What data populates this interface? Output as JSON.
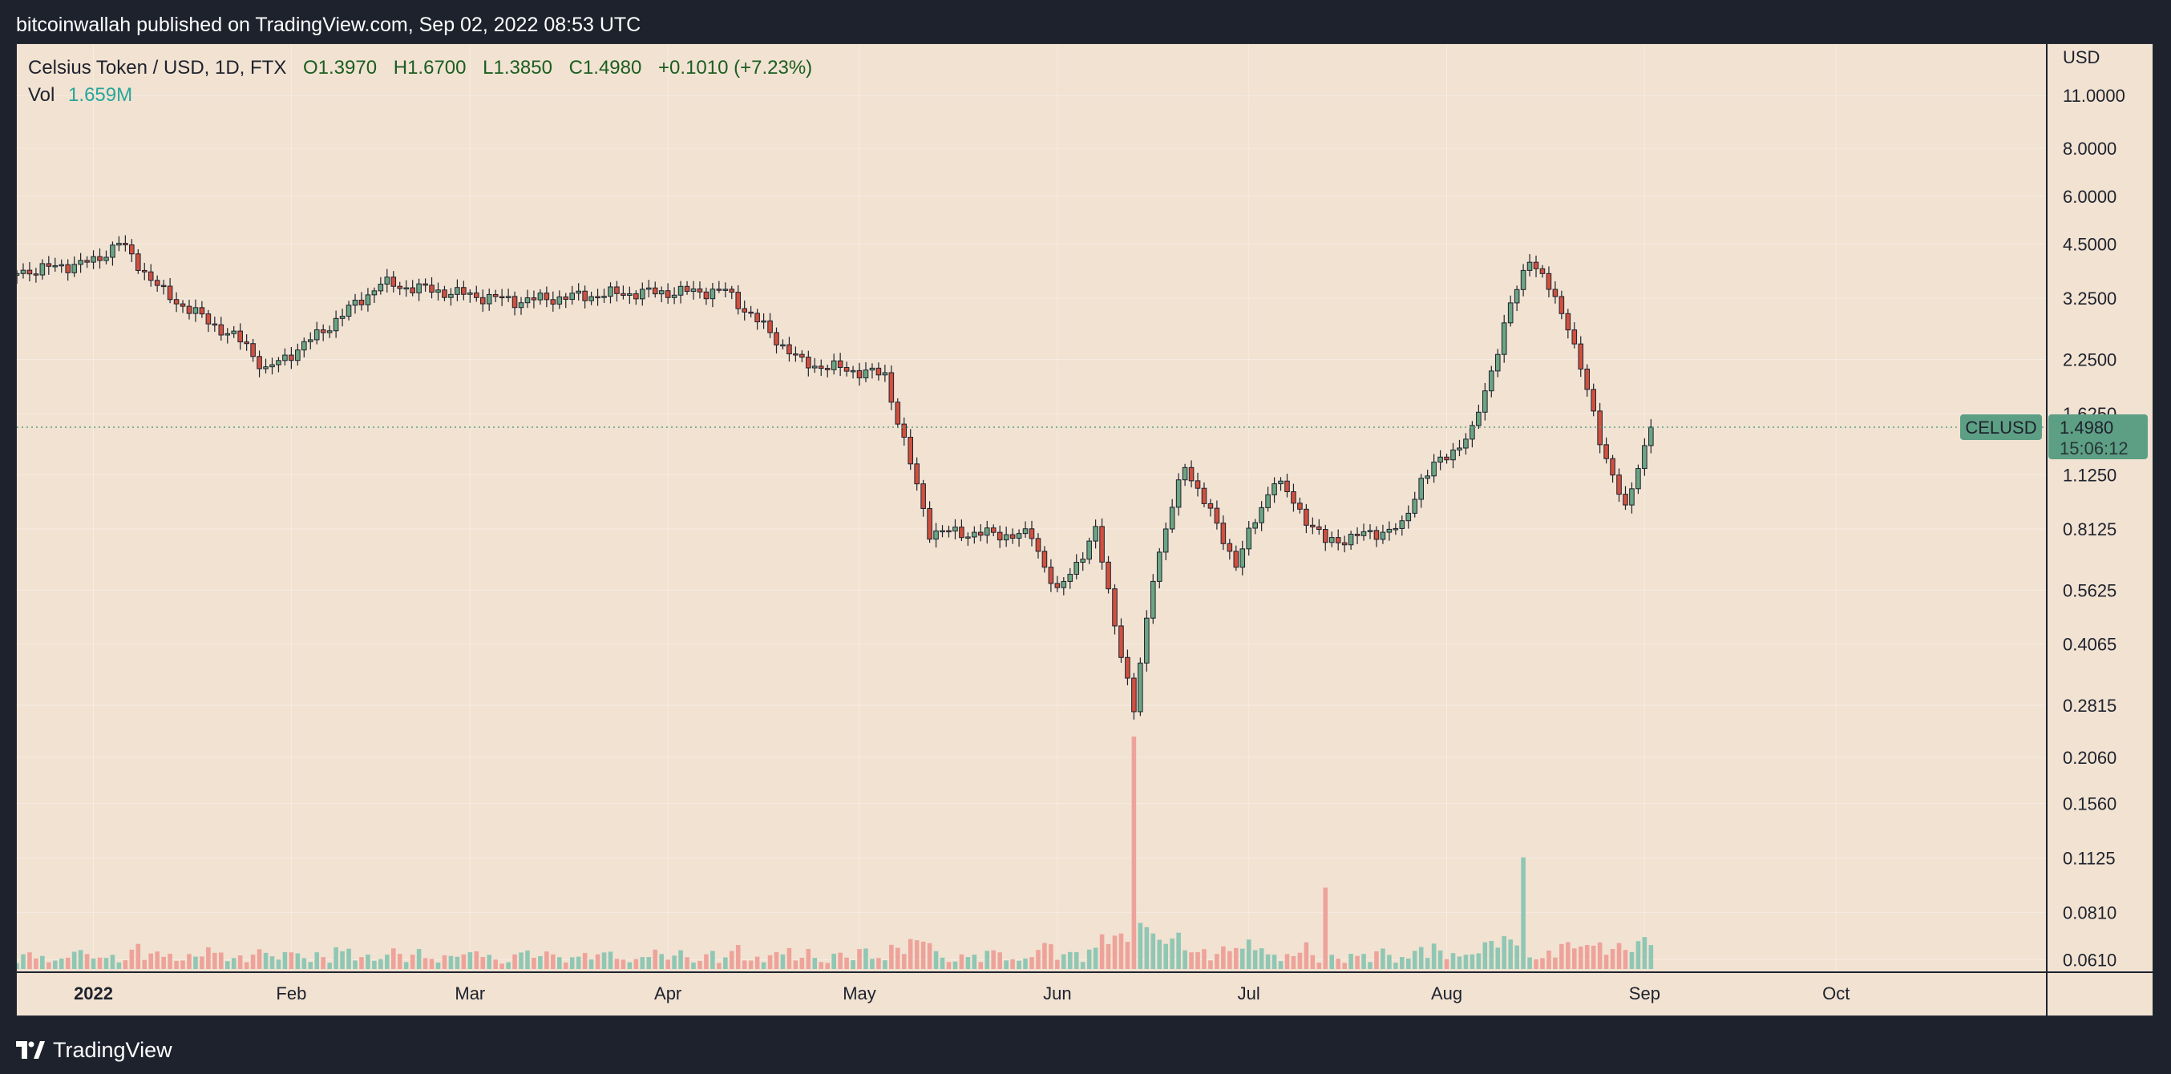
{
  "header": {
    "publisher": "bitcoinwallah published on TradingView.com, Sep 02, 2022 08:53 UTC"
  },
  "legend": {
    "symbol": "Celsius Token / USD, 1D, FTX",
    "open": "O1.3970",
    "high": "H1.6700",
    "low": "L1.3850",
    "close": "C1.4980",
    "change": "+0.1010 (+7.23%)",
    "vol_label": "Vol",
    "vol_value": "1.659M"
  },
  "price_axis": {
    "unit": "USD",
    "scale": "log",
    "ticks": [
      "11.0000",
      "8.0000",
      "6.0000",
      "4.5000",
      "3.2500",
      "2.2500",
      "1.6250",
      "1.1250",
      "0.8125",
      "0.5625",
      "0.4065",
      "0.2815",
      "0.2060",
      "0.1560",
      "0.1125",
      "0.0810",
      "0.0610"
    ]
  },
  "time_axis": {
    "labels": [
      "2022",
      "Feb",
      "Mar",
      "Apr",
      "May",
      "Jun",
      "Jul",
      "Aug",
      "Sep",
      "Oct"
    ]
  },
  "price_tag": {
    "symbol": "CELUSD",
    "price": "1.4980",
    "countdown": "15:06:12"
  },
  "colors": {
    "up": "#6ba583",
    "down": "#d0503f",
    "vol_up": "#8fc7b4",
    "vol_down": "#eea39a",
    "tag": "#5d9f84",
    "background": "#f1e2d2",
    "frame": "#1e222d"
  },
  "footer": {
    "brand": "TradingView"
  },
  "chart_data": {
    "type": "candlestick",
    "interval": "1D",
    "y_scale": "log",
    "ylim": [
      0.055,
      14
    ],
    "last_price": 1.498,
    "series": [
      {
        "name": "price",
        "values": [
          {
            "date": "2021-12-20",
            "c": 3.8
          },
          {
            "date": "2022-01-01",
            "c": 4.05
          },
          {
            "date": "2022-01-05",
            "c": 4.55
          },
          {
            "date": "2022-01-12",
            "c": 3.35
          },
          {
            "date": "2022-01-25",
            "c": 2.45
          },
          {
            "date": "2022-01-28",
            "c": 2.1
          },
          {
            "date": "2022-02-05",
            "c": 2.6
          },
          {
            "date": "2022-02-15",
            "c": 3.55
          },
          {
            "date": "2022-03-08",
            "c": 3.2
          },
          {
            "date": "2022-03-25",
            "c": 3.35
          },
          {
            "date": "2022-04-10",
            "c": 3.4
          },
          {
            "date": "2022-04-22",
            "c": 2.2
          },
          {
            "date": "2022-05-05",
            "c": 2.05
          },
          {
            "date": "2022-05-12",
            "c": 0.8
          },
          {
            "date": "2022-05-28",
            "c": 0.78
          },
          {
            "date": "2022-06-01",
            "c": 0.55
          },
          {
            "date": "2022-06-07",
            "c": 0.8
          },
          {
            "date": "2022-06-13",
            "c": 0.27
          },
          {
            "date": "2022-06-16",
            "c": 0.62
          },
          {
            "date": "2022-06-21",
            "c": 1.2
          },
          {
            "date": "2022-06-29",
            "c": 0.66
          },
          {
            "date": "2022-07-05",
            "c": 1.1
          },
          {
            "date": "2022-07-13",
            "c": 0.75
          },
          {
            "date": "2022-07-25",
            "c": 0.82
          },
          {
            "date": "2022-07-28",
            "c": 1.1
          },
          {
            "date": "2022-08-05",
            "c": 1.45
          },
          {
            "date": "2022-08-11",
            "c": 3.1
          },
          {
            "date": "2022-08-14",
            "c": 4.2
          },
          {
            "date": "2022-08-20",
            "c": 2.8
          },
          {
            "date": "2022-08-25",
            "c": 1.4
          },
          {
            "date": "2022-08-29",
            "c": 0.9
          },
          {
            "date": "2022-08-31",
            "c": 1.2
          },
          {
            "date": "2022-09-02",
            "c": 1.498
          }
        ]
      }
    ],
    "volume_spikes": [
      {
        "date": "2022-06-13",
        "v": 1.0
      },
      {
        "date": "2022-08-13",
        "v": 0.48
      },
      {
        "date": "2022-07-13",
        "v": 0.35
      }
    ]
  }
}
